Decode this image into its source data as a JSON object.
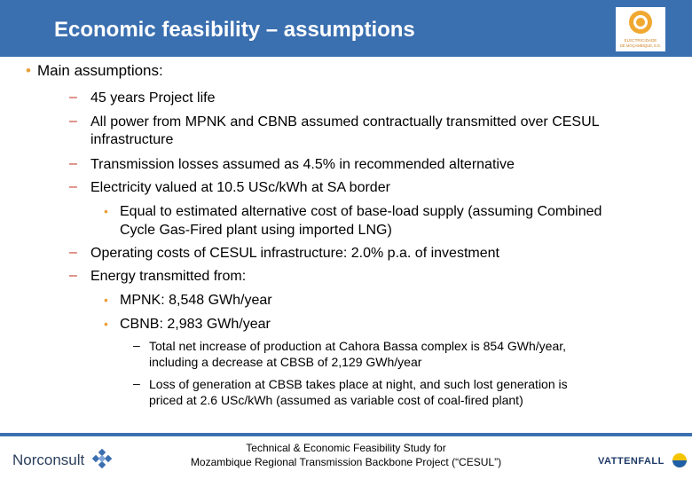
{
  "header": {
    "title": "Economic feasibility – assumptions",
    "logo_text_1": "ELECTRICIDADE",
    "logo_text_2": "DE MOÇAMBIQUE, E.E."
  },
  "content": {
    "main_bullet": "Main assumptions:",
    "items": [
      "45 years Project life",
      "All power from MPNK and CBNB assumed contractually transmitted over CESUL",
      "infrastructure",
      "Transmission losses assumed as 4.5% in recommended alternative",
      "Electricity valued at 10.5 USc/kWh at SA border",
      "Equal to estimated alternative cost of base-load supply (assuming Combined",
      "Cycle Gas-Fired plant using imported LNG)",
      "Operating costs of CESUL infrastructure: 2.0% p.a. of investment",
      "Energy transmitted from:",
      "MPNK: 8,548 GWh/year",
      "CBNB: 2,983 GWh/year",
      "Total net increase of production at Cahora Bassa complex is 854 GWh/year,",
      "including a decrease at CBSB of 2,129 GWh/year",
      "Loss of generation at CBSB takes place at night, and such lost generation is",
      "priced at 2.6 USc/kWh (assumed as variable cost of coal-fired plant)"
    ]
  },
  "footer": {
    "line1": "Technical & Economic Feasibility Study for",
    "line2": "Mozambique Regional Transmission Backbone Project (“CESUL”)",
    "left_logo": "Norconsult",
    "right_logo": "VATTENFALL"
  },
  "colors": {
    "header_bg": "#3a6fb0",
    "bullet_orange": "#e8a13a",
    "dash_red": "#c0392b"
  },
  "icons": [
    "edm-logo-icon",
    "norconsult-logo-icon",
    "vattenfall-logo-icon"
  ]
}
